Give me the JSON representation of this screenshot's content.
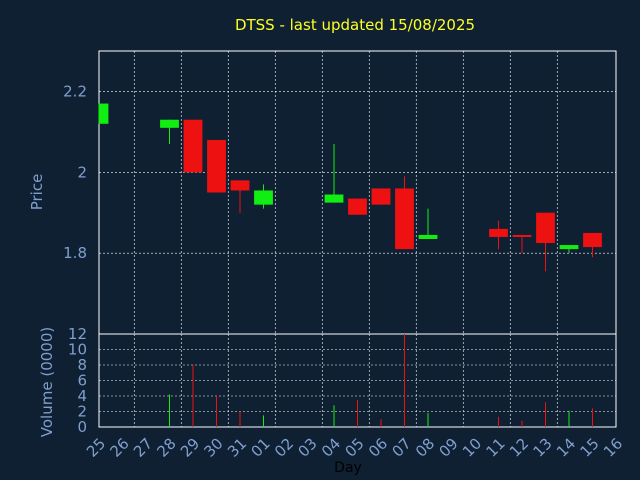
{
  "chart_data": {
    "type": "candlestick",
    "title": "DTSS - last updated 15/08/2025",
    "xlabel": "Day",
    "price_panel": {
      "ylabel": "Price",
      "ylim": [
        1.6,
        2.3
      ],
      "yticks": [
        "1.8",
        "2",
        "2.2"
      ],
      "ytick_values": [
        1.8,
        2.0,
        2.2
      ],
      "grid": true
    },
    "volume_panel": {
      "ylabel": "Volume (0000)",
      "ylim": [
        0,
        12
      ],
      "yticks": [
        "0",
        "2",
        "4",
        "6",
        "8",
        "10",
        "12"
      ],
      "ytick_values": [
        0,
        2,
        4,
        6,
        8,
        10,
        12
      ],
      "grid": true
    },
    "x_tick_labels": [
      "25",
      "26",
      "27",
      "28",
      "29",
      "30",
      "31",
      "01",
      "02",
      "03",
      "04",
      "05",
      "06",
      "07",
      "08",
      "09",
      "10",
      "11",
      "12",
      "13",
      "14",
      "15",
      "16"
    ],
    "candles": [
      {
        "day": "25",
        "open": 2.12,
        "high": 2.17,
        "low": 2.12,
        "close": 2.17,
        "volume": 0
      },
      {
        "day": "28",
        "open": 2.11,
        "high": 2.13,
        "low": 2.07,
        "close": 2.13,
        "volume": 4.2
      },
      {
        "day": "29",
        "open": 2.13,
        "high": 2.13,
        "low": 2.0,
        "close": 2.0,
        "volume": 8.0
      },
      {
        "day": "30",
        "open": 2.08,
        "high": 2.08,
        "low": 1.95,
        "close": 1.95,
        "volume": 4.0
      },
      {
        "day": "31",
        "open": 1.98,
        "high": 1.98,
        "low": 1.9,
        "close": 1.955,
        "volume": 2.0
      },
      {
        "day": "01",
        "open": 1.92,
        "high": 1.97,
        "low": 1.91,
        "close": 1.955,
        "volume": 1.5
      },
      {
        "day": "04",
        "open": 1.925,
        "high": 2.07,
        "low": 1.925,
        "close": 1.945,
        "volume": 2.8
      },
      {
        "day": "05",
        "open": 1.935,
        "high": 1.935,
        "low": 1.895,
        "close": 1.895,
        "volume": 3.5
      },
      {
        "day": "06",
        "open": 1.96,
        "high": 1.96,
        "low": 1.92,
        "close": 1.92,
        "volume": 1.0
      },
      {
        "day": "07",
        "open": 1.96,
        "high": 1.99,
        "low": 1.81,
        "close": 1.81,
        "volume": 12.0
      },
      {
        "day": "08",
        "open": 1.835,
        "high": 1.91,
        "low": 1.835,
        "close": 1.845,
        "volume": 1.8
      },
      {
        "day": "11",
        "open": 1.86,
        "high": 1.88,
        "low": 1.81,
        "close": 1.84,
        "volume": 1.3
      },
      {
        "day": "12",
        "open": 1.845,
        "high": 1.845,
        "low": 1.8,
        "close": 1.84,
        "volume": 0.8
      },
      {
        "day": "13",
        "open": 1.9,
        "high": 1.9,
        "low": 1.755,
        "close": 1.825,
        "volume": 3.2
      },
      {
        "day": "14",
        "open": 1.81,
        "high": 1.82,
        "low": 1.8,
        "close": 1.82,
        "volume": 2.1
      },
      {
        "day": "15",
        "open": 1.85,
        "high": 1.85,
        "low": 1.79,
        "close": 1.815,
        "volume": 2.4
      }
    ],
    "colors": {
      "background": "#0f2033",
      "plot_border": "#ffffff",
      "grid": "#ffffff",
      "up": "#11ee11",
      "down": "#ee1111",
      "title": "#ffff22",
      "axis_text": "#7f9fcf",
      "xlabel": "#000000"
    }
  }
}
